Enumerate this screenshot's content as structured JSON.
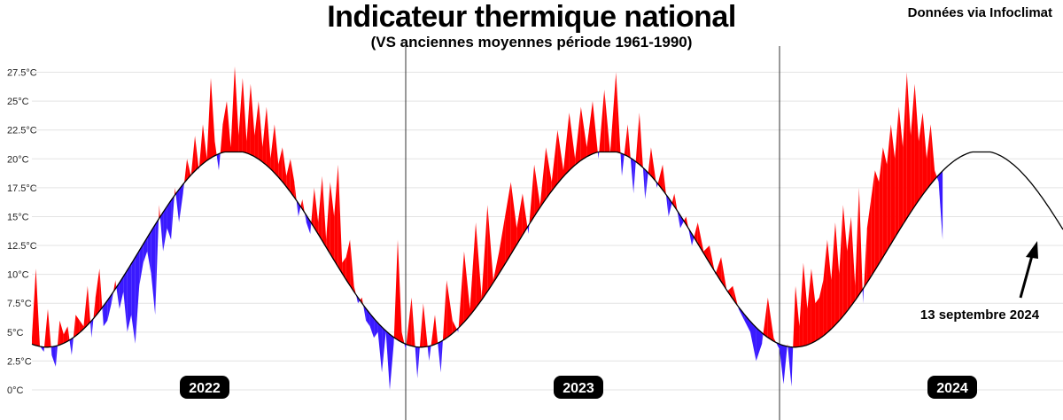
{
  "chart_data": {
    "type": "area",
    "title": "Indicateur thermique national",
    "subtitle": "(VS anciennes moyennes période 1961-1990)",
    "source": "Données via Infoclimat",
    "y_unit": "°C",
    "ylim": [
      0,
      28
    ],
    "yticks": [
      "0°C",
      "2.5°C",
      "5°C",
      "7.5°C",
      "10°C",
      "12.5°C",
      "15°C",
      "17.5°C",
      "20°C",
      "22.5°C",
      "25°C",
      "27.5°C"
    ],
    "years": [
      "2022",
      "2023",
      "2024"
    ],
    "colors": {
      "above_normal": "#ff0000",
      "below_normal": "#3a1aff",
      "normal_line": "#000000"
    },
    "annotation": {
      "text": "13 septembre 2024",
      "value": 13.0
    },
    "series": [
      {
        "name": "Indicateur thermique national",
        "values_2022": [
          4.5,
          10.5,
          3.8,
          3.3,
          7.0,
          3.0,
          2.0,
          6.0,
          4.8,
          5.5,
          3.0,
          6.5,
          6.0,
          5.5,
          9.0,
          4.5,
          8.0,
          10.5,
          5.5,
          6.0,
          7.5,
          9.5,
          7.0,
          8.5,
          5.0,
          6.5,
          4.0,
          9.0,
          11.0,
          12.0,
          10.0,
          6.5,
          16.0,
          12.0,
          14.0,
          13.0,
          17.5,
          14.5,
          17.0,
          20.0,
          18.5,
          22.0,
          19.0,
          23.0,
          20.0,
          27.0,
          21.5,
          19.0,
          23.0,
          25.0,
          21.0,
          28.0,
          22.0,
          27.0,
          21.5,
          26.5,
          22.0,
          25.0,
          21.0,
          24.5,
          20.0,
          23.0,
          19.5,
          21.0,
          18.5,
          20.0,
          18.0,
          15.0,
          16.5,
          14.5,
          13.5,
          17.5,
          14.5,
          18.5,
          13.0,
          18.0,
          15.0,
          19.5,
          11.0,
          11.5,
          13.0,
          9.0,
          7.5,
          8.0,
          6.0,
          5.5,
          4.5,
          5.0,
          1.5,
          5.0,
          0.0,
          4.0,
          13.0,
          5.0,
          3.5
        ],
        "values_2023": [
          3.5,
          8.0,
          1.0,
          7.5,
          2.5,
          6.5,
          1.5,
          9.5,
          6.0,
          5.0,
          12.0,
          7.0,
          14.5,
          8.0,
          16.0,
          9.5,
          12.0,
          15.0,
          18.0,
          14.0,
          17.0,
          13.5,
          19.5,
          16.0,
          21.0,
          18.0,
          22.5,
          19.0,
          24.0,
          20.0,
          24.5,
          21.0,
          25.0,
          20.0,
          26.0,
          20.5,
          27.5,
          18.5,
          23.0,
          17.0,
          24.0,
          16.5,
          21.0,
          17.5,
          19.5,
          15.0,
          17.0,
          14.0,
          15.0,
          12.5,
          14.5,
          12.0,
          12.5,
          10.0,
          11.5,
          8.5,
          9.0,
          7.0,
          6.0,
          5.0,
          2.5,
          4.0,
          8.0,
          4.5,
          3.5
        ],
        "values_2024": [
          3.5,
          0.5,
          4.0,
          0.3,
          9.0,
          5.5,
          11.0,
          7.0,
          10.5,
          7.5,
          8.0,
          9.5,
          13.0,
          9.5,
          14.5,
          10.0,
          16.0,
          12.0,
          15.0,
          9.0,
          17.5,
          7.5,
          14.0,
          16.5,
          19.0,
          18.0,
          21.0,
          19.5,
          23.0,
          20.0,
          24.5,
          21.0,
          27.5,
          22.0,
          26.5,
          21.5,
          24.0,
          20.0,
          23.0,
          19.0,
          18.0,
          13.0
        ]
      }
    ]
  }
}
